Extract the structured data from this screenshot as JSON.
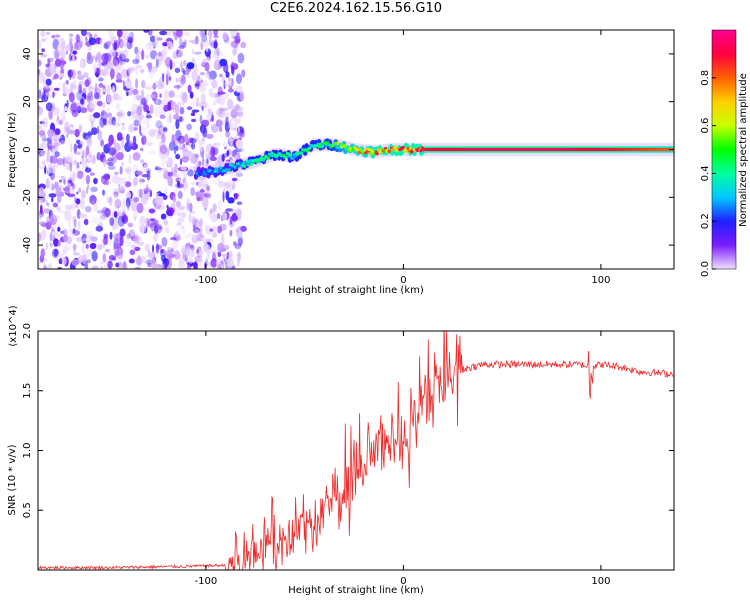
{
  "page": {
    "title": "C2E6.2024.162.15.56.G10"
  },
  "chart_data": [
    {
      "type": "heatmap",
      "title": "C2E6.2024.162.15.56.G10",
      "xlabel": "Height of straight line (km)",
      "ylabel": "Frequency (Hz)",
      "xlim": [
        -185,
        137
      ],
      "ylim": [
        -50,
        50
      ],
      "x_ticks": [
        -100,
        0,
        100
      ],
      "y_ticks": [
        -40,
        -20,
        0,
        20,
        40
      ],
      "colorbar": {
        "label": "Normalized spectral amplitude",
        "range": [
          0,
          1
        ],
        "ticks": [
          "0.0",
          "0.2",
          "0.4",
          "0.6",
          "0.8"
        ],
        "colormap": [
          "#f0e0ff",
          "#7a1cff",
          "#2020ff",
          "#00c8ff",
          "#00ffa0",
          "#00ff00",
          "#c8ff00",
          "#ffd000",
          "#ff6000",
          "#ff0040",
          "#ff0090"
        ]
      },
      "regions": {
        "noise_x_range": [
          -185,
          -85
        ],
        "noise_freq_range": [
          -50,
          50
        ],
        "signal_start_x": -105,
        "signal_peak_freq": 0
      },
      "ridge": {
        "x": [
          -105,
          -95,
          -85,
          -75,
          -65,
          -55,
          -45,
          -35,
          -25,
          -15,
          -5,
          5,
          15,
          40,
          80,
          100,
          137
        ],
        "freq": [
          -10,
          -9,
          -7,
          -5,
          -2,
          -3,
          2,
          2,
          0,
          -1,
          0,
          0,
          0,
          0,
          0,
          0,
          0
        ],
        "amplitude": [
          0.25,
          0.35,
          0.35,
          0.45,
          0.45,
          0.45,
          0.45,
          0.5,
          0.75,
          0.8,
          0.85,
          0.85,
          0.9,
          0.95,
          0.95,
          0.9,
          0.8
        ]
      }
    },
    {
      "type": "line",
      "xlabel": "Height of straight line (km)",
      "ylabel": "SNR (10 * v/v)",
      "y_multiplier": "(x10^4)",
      "xlim": [
        -185,
        137
      ],
      "ylim": [
        0,
        2.0
      ],
      "x_ticks": [
        -100,
        0,
        100
      ],
      "y_ticks": [
        "0.5",
        "1.0",
        "1.5",
        "2.0"
      ],
      "series": [
        {
          "color": "#ee2a2a",
          "x": [
            -185,
            -150,
            -110,
            -90,
            -80,
            -70,
            -60,
            -55,
            -50,
            -45,
            -40,
            -35,
            -30,
            -25,
            -20,
            -15,
            -10,
            -5,
            0,
            5,
            10,
            15,
            20,
            30,
            40,
            60,
            80,
            90,
            95,
            100,
            110,
            120,
            137
          ],
          "y": [
            0.02,
            0.02,
            0.03,
            0.04,
            0.1,
            0.2,
            0.3,
            0.35,
            0.3,
            0.35,
            0.45,
            0.55,
            0.65,
            0.75,
            0.85,
            1.0,
            1.05,
            1.15,
            1.1,
            1.25,
            1.35,
            1.45,
            1.55,
            1.68,
            1.72,
            1.72,
            1.72,
            1.72,
            1.7,
            1.72,
            1.7,
            1.66,
            1.64
          ]
        }
      ]
    }
  ]
}
